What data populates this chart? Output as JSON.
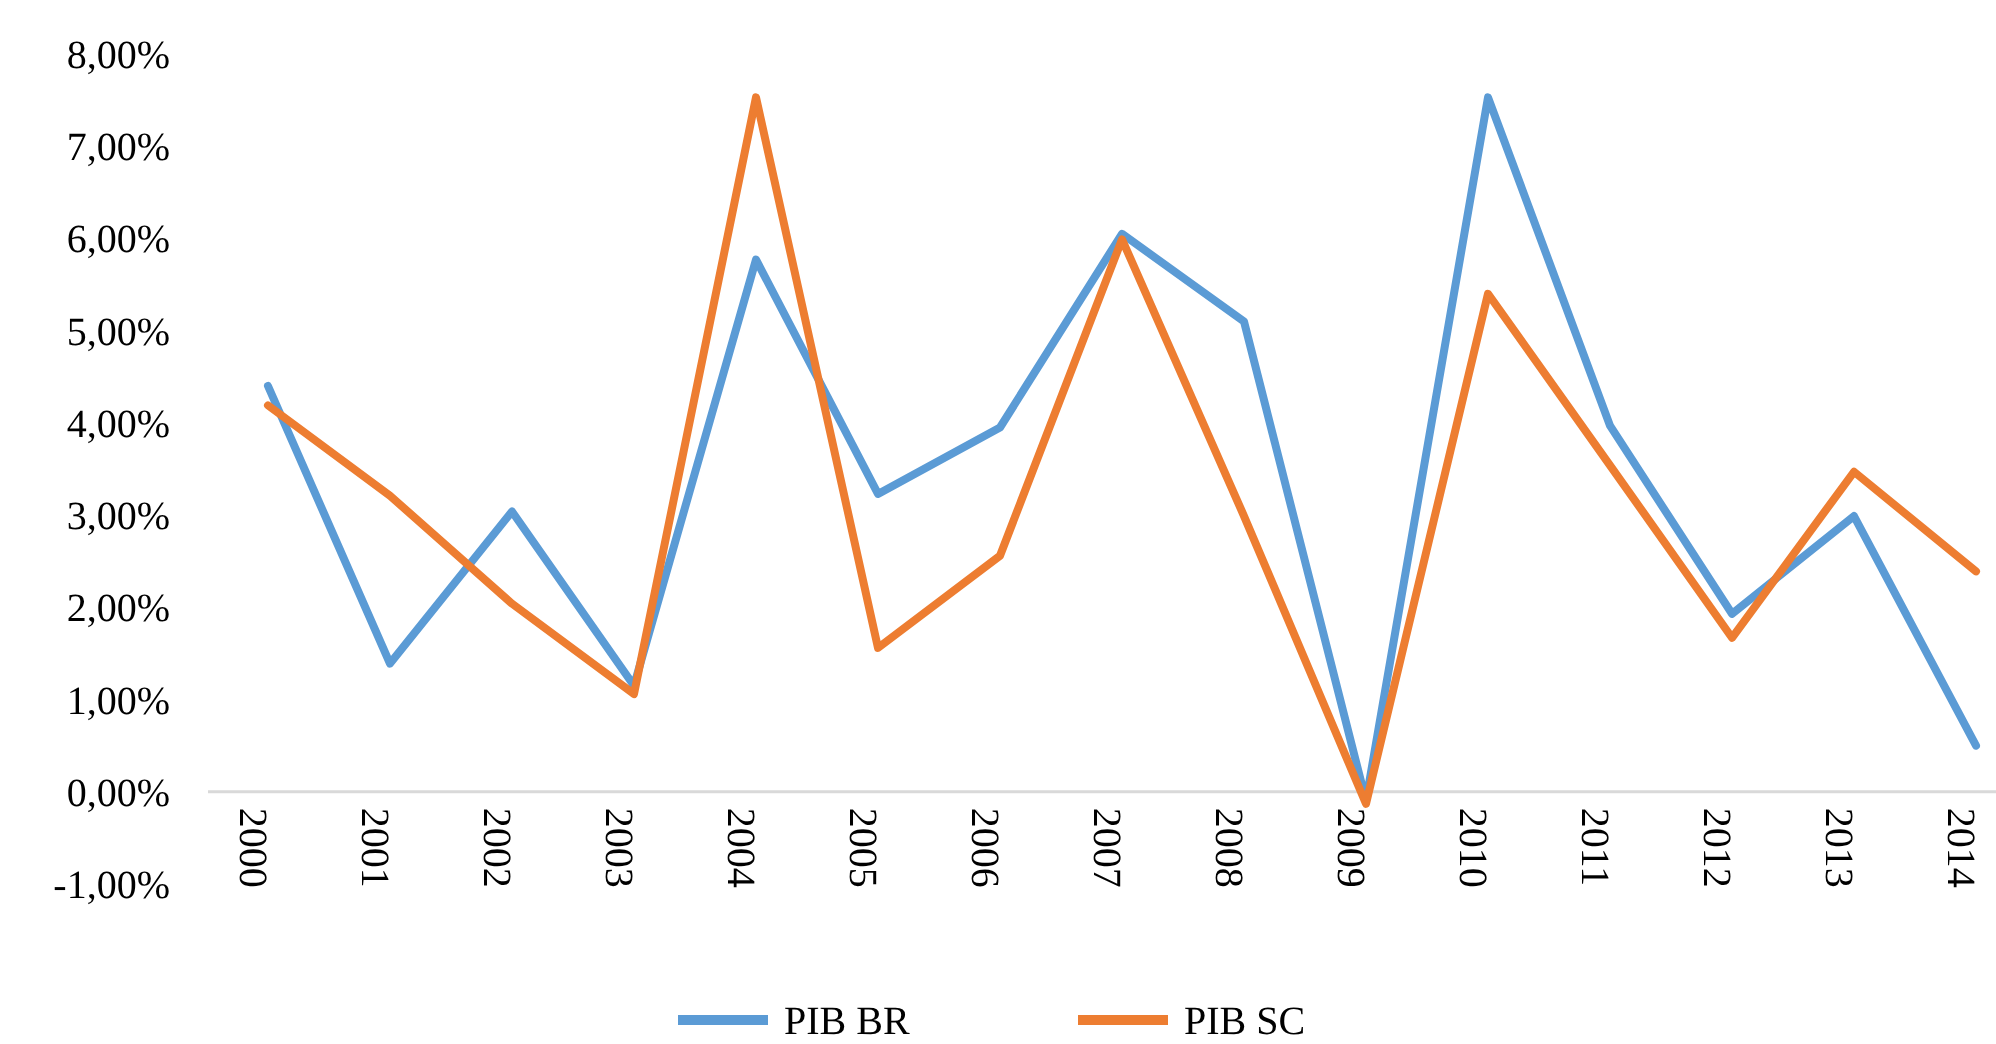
{
  "chart_data": {
    "type": "line",
    "categories": [
      "2000",
      "2001",
      "2002",
      "2003",
      "2004",
      "2005",
      "2006",
      "2007",
      "2008",
      "2009",
      "2010",
      "2011",
      "2012",
      "2013",
      "2014"
    ],
    "series": [
      {
        "name": "PIB BR",
        "color": "#5b9bd5",
        "values": [
          4.4,
          1.39,
          3.04,
          1.15,
          5.77,
          3.23,
          3.95,
          6.05,
          5.1,
          -0.1,
          7.53,
          3.97,
          1.93,
          2.99,
          0.5
        ]
      },
      {
        "name": "PIB SC",
        "color": "#ed7d31",
        "values": [
          4.19,
          3.21,
          2.04,
          1.06,
          7.53,
          1.56,
          2.56,
          5.99,
          2.99,
          -0.13,
          5.4,
          3.54,
          1.67,
          3.47,
          2.39
        ]
      }
    ],
    "ylim": [
      -1,
      8
    ],
    "yticks": [
      {
        "value": -1,
        "label": "-1,00%"
      },
      {
        "value": 0,
        "label": "0,00%"
      },
      {
        "value": 1,
        "label": "1,00%"
      },
      {
        "value": 2,
        "label": "2,00%"
      },
      {
        "value": 3,
        "label": "3,00%"
      },
      {
        "value": 4,
        "label": "4,00%"
      },
      {
        "value": 5,
        "label": "5,00%"
      },
      {
        "value": 6,
        "label": "6,00%"
      },
      {
        "value": 7,
        "label": "7,00%"
      },
      {
        "value": 8,
        "label": "8,00%"
      }
    ],
    "legend": "bottom",
    "marker": "none",
    "line_style": "solid"
  }
}
